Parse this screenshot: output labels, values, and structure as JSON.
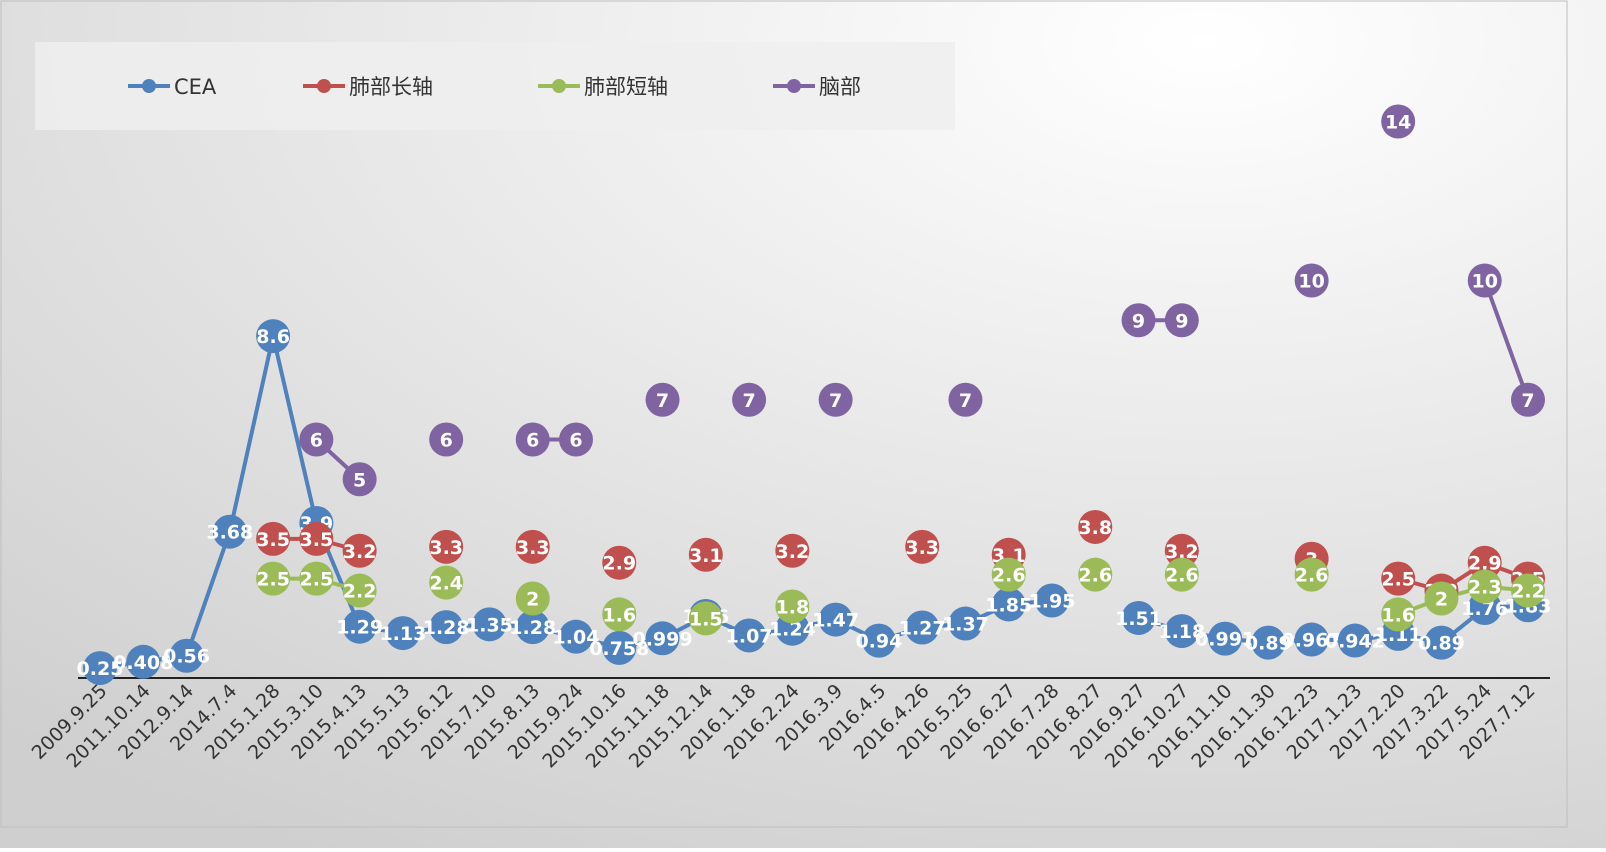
{
  "chart_data": {
    "type": "line",
    "categories": [
      "2009.9.25",
      "2011.10.14",
      "2012.9.14",
      "2014.7.4",
      "2015.1.28",
      "2015.3.10",
      "2015.4.13",
      "2015.5.13",
      "2015.6.12",
      "2015.7.10",
      "2015.8.13",
      "2015.9.24",
      "2015.10.16",
      "2015.11.18",
      "2015.12.14",
      "2016.1.18",
      "2016.2.24",
      "2016.3.9",
      "2016.4.5",
      "2016.4.26",
      "2016.5.25",
      "2016.6.27",
      "2016.7.28",
      "2016.8.27",
      "2016.9.27",
      "2016.10.27",
      "2016.11.10",
      "2016.11.30",
      "2016.12.23",
      "2017.1.23",
      "2017.2.20",
      "2017.3.22",
      "2017.5.24",
      "2027.7.12"
    ],
    "series": [
      {
        "name": "CEA",
        "color": "#4F81BD",
        "values": [
          0.25,
          0.408,
          0.56,
          3.68,
          8.6,
          3.9,
          1.29,
          1.13,
          1.28,
          1.35,
          1.28,
          1.04,
          0.758,
          0.999,
          1.56,
          1.07,
          1.24,
          1.47,
          0.94,
          1.27,
          1.37,
          1.85,
          1.95,
          null,
          1.51,
          1.18,
          0.991,
          0.89,
          0.967,
          0.942,
          1.11,
          0.89,
          1.76,
          1.83
        ]
      },
      {
        "name": "肺部长轴",
        "color": "#C0504D",
        "values": [
          null,
          null,
          null,
          null,
          3.5,
          3.5,
          3.2,
          null,
          3.3,
          null,
          3.3,
          null,
          2.9,
          null,
          3.1,
          null,
          3.2,
          null,
          null,
          3.3,
          null,
          3.1,
          null,
          3.8,
          null,
          3.2,
          null,
          null,
          3,
          null,
          2.5,
          2.2,
          2.9,
          2.5
        ]
      },
      {
        "name": "肺部短轴",
        "color": "#9BBB59",
        "values": [
          null,
          null,
          null,
          null,
          2.5,
          2.5,
          2.2,
          null,
          2.4,
          null,
          2,
          null,
          1.6,
          null,
          1.5,
          null,
          1.8,
          null,
          null,
          null,
          null,
          2.6,
          null,
          2.6,
          null,
          2.6,
          null,
          null,
          2.6,
          null,
          1.6,
          2,
          2.3,
          2.2
        ]
      },
      {
        "name": "脑部",
        "color": "#8064A2",
        "values": [
          null,
          null,
          null,
          null,
          null,
          6,
          5,
          null,
          6,
          null,
          6,
          6,
          null,
          7,
          null,
          7,
          null,
          7,
          null,
          null,
          7,
          null,
          null,
          null,
          9,
          9,
          null,
          null,
          10,
          null,
          14,
          null,
          10,
          7
        ]
      }
    ],
    "labels": {
      "CEA": [
        "0.25",
        "0.408",
        "0.56",
        "3.68",
        "8.6",
        "3.9",
        "1.29",
        "1.13",
        "1.28",
        "1.35",
        "1.28",
        "1.04",
        "0.758",
        "0.999",
        "1.56",
        "1.07",
        "1.24",
        "1.47",
        "0.94",
        "1.27",
        "1.37",
        "1.85",
        "1.95",
        null,
        "1.51",
        "1.18",
        "0.991",
        "0.89",
        "0.967",
        "0.942",
        "1.11",
        "0.89",
        "1.76",
        "1.83"
      ],
      "肺部长轴": [
        null,
        null,
        null,
        null,
        "3.5",
        "3.5",
        "3.2",
        null,
        "3.3",
        null,
        "3.3",
        null,
        "2.9",
        null,
        "3.1",
        null,
        "3.2",
        null,
        null,
        "3.3",
        null,
        "3.1",
        null,
        "3.8",
        null,
        "3.2",
        null,
        null,
        "3",
        null,
        "2.5",
        "2.2",
        "2.9",
        "2.5"
      ],
      "肺部短轴": [
        null,
        null,
        null,
        null,
        "2.5",
        "2.5",
        "2.2",
        null,
        "2.4",
        null,
        "2",
        null,
        "1.6",
        null,
        "1.5",
        null,
        "1.8",
        null,
        null,
        null,
        null,
        "2.6",
        null,
        "2.6",
        null,
        "2.6",
        null,
        null,
        "2.6",
        null,
        "1.6",
        "2",
        "2.3",
        "2.2"
      ],
      "脑部": [
        null,
        null,
        null,
        null,
        null,
        "6",
        "5",
        null,
        "6",
        null,
        "6",
        "6",
        null,
        "7",
        null,
        "7",
        null,
        "7",
        null,
        null,
        "7",
        null,
        null,
        null,
        "9",
        "9",
        null,
        null,
        "10",
        null,
        "14",
        null,
        "10",
        "7"
      ]
    },
    "title": "",
    "xlabel": "",
    "ylabel": "",
    "ylim": [
      0,
      16
    ],
    "grid": false,
    "legend": "top-left"
  }
}
